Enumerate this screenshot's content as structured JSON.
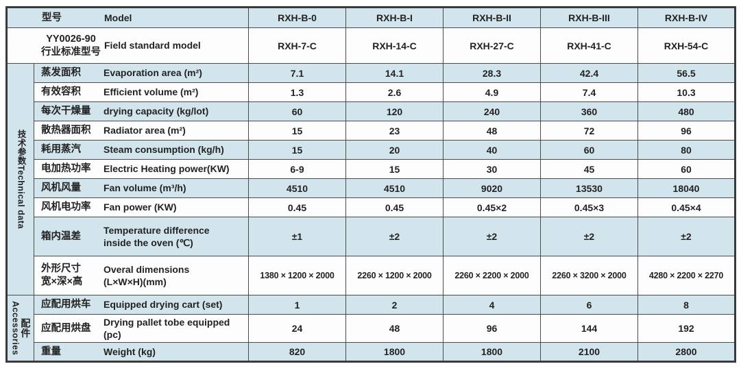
{
  "colors": {
    "stripe_blue": "#d3e5ec",
    "row_white": "#fdfdfd",
    "border": "#4a4a4a",
    "text": "#222222"
  },
  "table": {
    "model_row": {
      "zh": "型号",
      "en": "Model",
      "values": [
        "RXH-B-0",
        "RXH-B-I",
        "RXH-B-II",
        "RXH-B-III",
        "RXH-B-IV"
      ]
    },
    "standard_row": {
      "zh": [
        "YY0026-90",
        "行业标准型号"
      ],
      "en": "Field standard model",
      "values": [
        "RXH-7-C",
        "RXH-14-C",
        "RXH-27-C",
        "RXH-41-C",
        "RXH-54-C"
      ]
    },
    "sections": [
      {
        "id": "technical",
        "label_layout": "single-column",
        "group_label": {
          "zh": "技术参数",
          "en": "Technical data"
        },
        "rows": [
          {
            "zh": [
              "蒸发面积"
            ],
            "en": [
              "Evaporation area (m²)"
            ],
            "values": [
              "7.1",
              "14.1",
              "28.3",
              "42.4",
              "56.5"
            ]
          },
          {
            "zh": [
              "有效容积"
            ],
            "en": [
              "Efficient volume (m²)"
            ],
            "values": [
              "1.3",
              "2.6",
              "4.9",
              "7.4",
              "10.3"
            ]
          },
          {
            "zh": [
              "每次干燥量"
            ],
            "en": [
              "drying capacity (kg/lot)"
            ],
            "values": [
              "60",
              "120",
              "240",
              "360",
              "480"
            ]
          },
          {
            "zh": [
              "散热器面积"
            ],
            "en": [
              "Radiator area (m²)"
            ],
            "values": [
              "15",
              "23",
              "48",
              "72",
              "96"
            ]
          },
          {
            "zh": [
              "耗用蒸汽"
            ],
            "en": [
              "Steam consumption (kg/h)"
            ],
            "values": [
              "15",
              "20",
              "40",
              "60",
              "80"
            ]
          },
          {
            "zh": [
              "电加热功率"
            ],
            "en": [
              "Electric Heating power(KW)"
            ],
            "values": [
              "6-9",
              "15",
              "30",
              "45",
              "60"
            ]
          },
          {
            "zh": [
              "风机风量"
            ],
            "en": [
              "Fan volume (m³/h)"
            ],
            "values": [
              "4510",
              "4510",
              "9020",
              "13530",
              "18040"
            ]
          },
          {
            "zh": [
              "风机电功率"
            ],
            "en": [
              "Fan power (KW)"
            ],
            "values": [
              "0.45",
              "0.45",
              "0.45×2",
              "0.45×3",
              "0.45×4"
            ]
          },
          {
            "zh": [
              "箱内温差"
            ],
            "en": [
              "Temperature difference",
              "inside the oven (℃)"
            ],
            "values": [
              "±1",
              "±2",
              "±2",
              "±2",
              "±2"
            ],
            "tall": true
          },
          {
            "zh": [
              "外形尺寸",
              "宽×深×高"
            ],
            "en": [
              "Overal dimensions",
              "(L×W×H)(mm)"
            ],
            "values": [
              "1380 × 1200 × 2000",
              "2260 × 1200 × 2000",
              "2260 × 2200 × 2000",
              "2260 × 3200 × 2000",
              "4280 × 2200 × 2270"
            ],
            "tall": true,
            "small_values": true
          }
        ]
      },
      {
        "id": "accessories",
        "label_layout": "two-column",
        "group_label": {
          "zh": "配件",
          "en": "Accessories"
        },
        "rows": [
          {
            "zh": [
              "应配用烘车"
            ],
            "en": [
              "Equipped drying cart (set)"
            ],
            "values": [
              "1",
              "2",
              "4",
              "6",
              "8"
            ]
          },
          {
            "zh": [
              "应配用烘盘"
            ],
            "en": [
              "Drying pallet tobe equipped (pc)"
            ],
            "values": [
              "24",
              "48",
              "96",
              "144",
              "192"
            ]
          },
          {
            "zh": [
              "重量"
            ],
            "en": [
              "Weight (kg)"
            ],
            "values": [
              "820",
              "1800",
              "1800",
              "2100",
              "2800"
            ]
          }
        ]
      }
    ]
  }
}
